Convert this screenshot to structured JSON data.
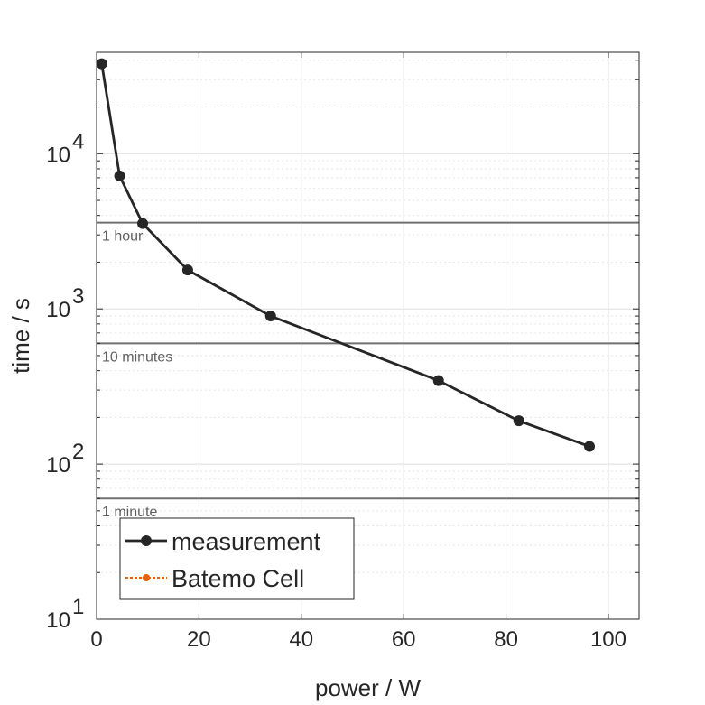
{
  "chart_data": {
    "type": "line",
    "title": "",
    "xlabel": "power / W",
    "ylabel": "time / s",
    "xlim": [
      0,
      106
    ],
    "ylim": [
      10,
      45000
    ],
    "yscale": "log",
    "grid": true,
    "minor_grid": true,
    "legend_position": "bottom-left",
    "x_ticks": [
      "0",
      "20",
      "40",
      "60",
      "80",
      "100"
    ],
    "y_ticks": [
      {
        "base": "10",
        "exp": "1",
        "value": 10
      },
      {
        "base": "10",
        "exp": "2",
        "value": 100
      },
      {
        "base": "10",
        "exp": "3",
        "value": 1000
      },
      {
        "base": "10",
        "exp": "4",
        "value": 10000
      }
    ],
    "series": [
      {
        "name": "measurement",
        "color": "#262626",
        "marker": "circle",
        "x": [
          1.0,
          4.5,
          9.0,
          17.8,
          34.0,
          66.8,
          82.5,
          96.3
        ],
        "y": [
          38000,
          7200,
          3550,
          1780,
          900,
          345,
          190,
          130
        ]
      },
      {
        "name": "Batemo Cell",
        "color": "#e6600e",
        "marker": "circle",
        "linestyle": "dotted",
        "x": [],
        "y": []
      }
    ],
    "reference_lines": [
      {
        "label": "1 hour",
        "y": 3600
      },
      {
        "label": "10 minutes",
        "y": 600
      },
      {
        "label": "1 minute",
        "y": 60
      }
    ]
  }
}
